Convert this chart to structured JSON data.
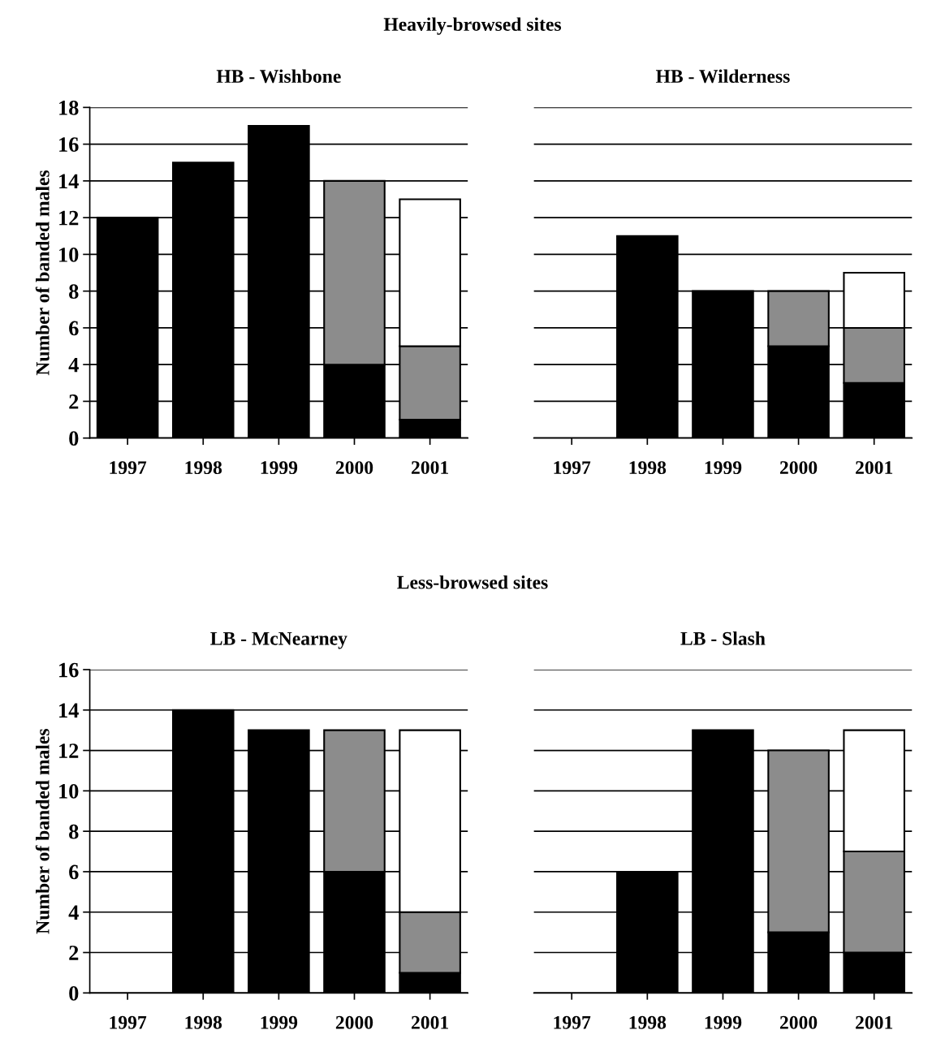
{
  "chart_data": [
    {
      "type": "bar",
      "title": "HB - Wishbone",
      "ylabel": "Number of banded males",
      "annotations": [
        "Heavily-browsed sites"
      ],
      "categories": [
        "1997",
        "1998",
        "1999",
        "2000",
        "2001"
      ],
      "stacked": true,
      "ylim": [
        0,
        18
      ],
      "yticks": [
        0,
        2,
        4,
        6,
        8,
        10,
        12,
        14,
        16,
        18
      ],
      "grid": "y",
      "series": [
        {
          "color": "#000000",
          "values": [
            12,
            15,
            17,
            4,
            1
          ]
        },
        {
          "color": "#8c8c8c",
          "values": [
            null,
            null,
            null,
            10,
            4
          ]
        },
        {
          "color": "#ffffff",
          "values": [
            null,
            null,
            null,
            null,
            8
          ]
        }
      ]
    },
    {
      "type": "bar",
      "title": "HB - Wilderness",
      "categories": [
        "1997",
        "1998",
        "1999",
        "2000",
        "2001"
      ],
      "stacked": true,
      "ylim": [
        0,
        18
      ],
      "yticks": [
        0,
        2,
        4,
        6,
        8,
        10,
        12,
        14,
        16,
        18
      ],
      "grid": "y",
      "tick_labels": "x",
      "series": [
        {
          "color": "#000000",
          "values": [
            null,
            11,
            8,
            5,
            3
          ]
        },
        {
          "color": "#8c8c8c",
          "values": [
            null,
            null,
            null,
            3,
            3
          ]
        },
        {
          "color": "#ffffff",
          "values": [
            null,
            null,
            null,
            null,
            3
          ]
        }
      ]
    },
    {
      "type": "bar",
      "title": "LB - McNearney",
      "ylabel": "Number of banded males",
      "annotations": [
        "Less-browsed sites"
      ],
      "categories": [
        "1997",
        "1998",
        "1999",
        "2000",
        "2001"
      ],
      "stacked": true,
      "ylim": [
        0,
        16
      ],
      "yticks": [
        0,
        2,
        4,
        6,
        8,
        10,
        12,
        14,
        16
      ],
      "grid": "y",
      "series": [
        {
          "color": "#000000",
          "values": [
            null,
            14,
            13,
            6,
            1
          ]
        },
        {
          "color": "#8c8c8c",
          "values": [
            null,
            null,
            null,
            7,
            3
          ]
        },
        {
          "color": "#ffffff",
          "values": [
            null,
            null,
            null,
            null,
            9
          ]
        }
      ]
    },
    {
      "type": "bar",
      "title": "LB - Slash",
      "categories": [
        "1997",
        "1998",
        "1999",
        "2000",
        "2001"
      ],
      "stacked": true,
      "ylim": [
        0,
        16
      ],
      "yticks": [
        0,
        2,
        4,
        6,
        8,
        10,
        12,
        14,
        16
      ],
      "grid": "y",
      "tick_labels": "x",
      "series": [
        {
          "color": "#000000",
          "values": [
            null,
            6,
            13,
            3,
            2
          ]
        },
        {
          "color": "#8c8c8c",
          "values": [
            null,
            null,
            null,
            9,
            5
          ]
        },
        {
          "color": "#ffffff",
          "values": [
            null,
            null,
            null,
            null,
            6
          ]
        }
      ]
    }
  ]
}
